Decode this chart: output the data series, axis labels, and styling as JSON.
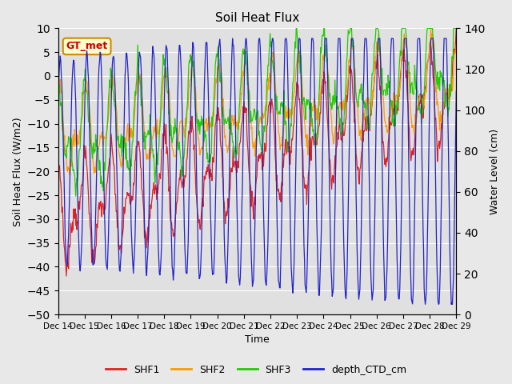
{
  "title": "Soil Heat Flux",
  "ylabel_left": "Soil Heat Flux (W/m2)",
  "ylabel_right": "Water Level (cm)",
  "xlabel": "Time",
  "ylim_left": [
    -50,
    10
  ],
  "ylim_right": [
    0,
    140
  ],
  "yticks_left": [
    -50,
    -45,
    -40,
    -35,
    -30,
    -25,
    -20,
    -15,
    -10,
    -5,
    0,
    5,
    10
  ],
  "yticks_right": [
    0,
    20,
    40,
    60,
    80,
    100,
    120,
    140
  ],
  "fig_bg_color": "#e8e8e8",
  "plot_bg_color": "#e0e0e0",
  "legend_entries": [
    "SHF1",
    "SHF2",
    "SHF3",
    "depth_CTD_cm"
  ],
  "annotation_text": "GT_met",
  "annotation_box_facecolor": "#ffffcc",
  "annotation_text_color": "#cc0000",
  "annotation_edge_color": "#cc8800",
  "grid_color": "#ffffff",
  "line_colors": {
    "SHF1": "#dd2222",
    "SHF2": "#ff9900",
    "SHF3": "#22cc00",
    "depth_CTD_cm": "#2222cc"
  },
  "x_tick_labels": [
    "Dec 14",
    "Dec 15",
    "Dec 16",
    "Dec 17",
    "Dec 18",
    "Dec 19",
    "Dec 20",
    "Dec 21",
    "Dec 22",
    "Dec 23",
    "Dec 24",
    "Dec 25",
    "Dec 26",
    "Dec 27",
    "Dec 28",
    "Dec 29"
  ],
  "num_days": 15,
  "points_per_day": 48
}
